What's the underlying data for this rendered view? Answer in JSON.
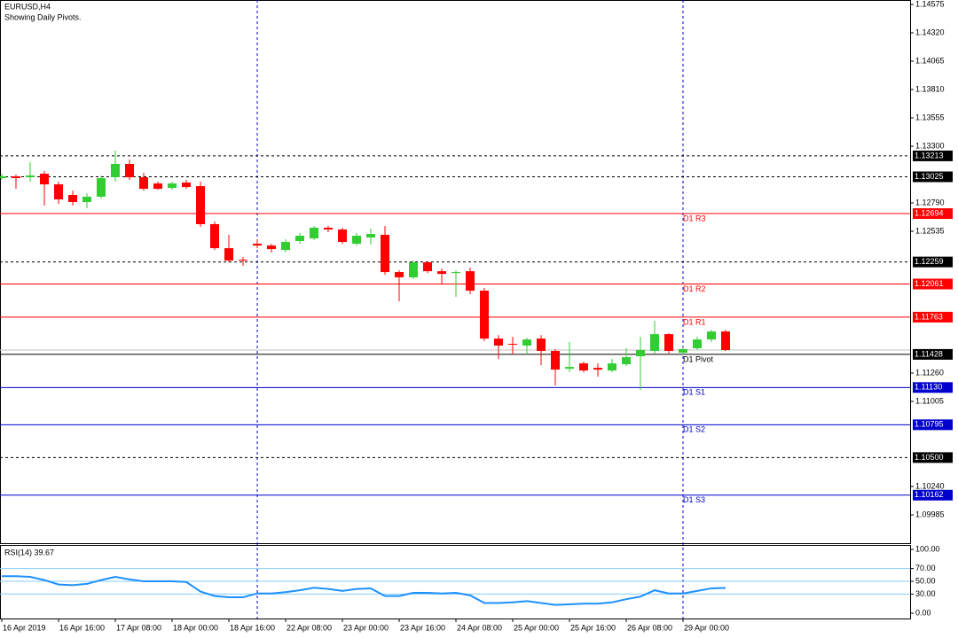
{
  "chart_data": [
    {
      "type": "candlestick",
      "title": "EURUSD,H4",
      "subtitle": "Showing Daily Pivots.",
      "categories": [
        "16 Apr 2019",
        null,
        null,
        null,
        "16 Apr 16:00",
        null,
        null,
        null,
        "17 Apr 08:00",
        null,
        null,
        null,
        "18 Apr 00:00",
        null,
        null,
        null,
        "18 Apr 16:00",
        null,
        null,
        null,
        "22 Apr 08:00",
        null,
        null,
        null,
        "23 Apr 00:00",
        null,
        null,
        null,
        "23 Apr 16:00",
        null,
        null,
        null,
        "24 Apr 08:00",
        null,
        null,
        null,
        "25 Apr 00:00",
        null,
        null,
        null,
        "25 Apr 16:00",
        null,
        null,
        null,
        "26 Apr 08:00",
        null,
        null,
        null,
        "29 Apr 00:00",
        null,
        null,
        null
      ],
      "open": [
        1.13013,
        1.13029,
        1.13021,
        1.13053,
        1.12957,
        1.12862,
        1.12798,
        1.12846,
        1.13021,
        1.13141,
        1.13021,
        1.12965,
        1.12925,
        1.12973,
        1.12941,
        1.12599,
        1.12383,
        1.1228,
        1.12423,
        1.12407,
        1.12367,
        1.12447,
        1.12471,
        1.12567,
        1.12551,
        1.12423,
        1.12479,
        1.12503,
        1.12168,
        1.12121,
        1.12256,
        1.12176,
        1.1216,
        1.12176,
        1.12001,
        1.1157,
        1.11523,
        1.11507,
        1.1157,
        1.11459,
        1.11299,
        1.11347,
        1.11307,
        1.11283,
        1.11339,
        1.11411,
        1.11459,
        1.1161,
        1.11443,
        1.11483,
        1.11562,
        1.11634
      ],
      "high": [
        1.13053,
        1.13045,
        1.13157,
        1.13077,
        1.12981,
        1.12901,
        1.12878,
        1.13037,
        1.1326,
        1.1318,
        1.13061,
        1.12981,
        1.12981,
        1.12997,
        1.12981,
        1.12623,
        1.12503,
        1.12304,
        1.12463,
        1.12423,
        1.12463,
        1.12519,
        1.12583,
        1.12583,
        1.12567,
        1.12519,
        1.12559,
        1.12583,
        1.12184,
        1.12272,
        1.12264,
        1.122,
        1.12184,
        1.12208,
        1.12025,
        1.11602,
        1.11586,
        1.11578,
        1.11602,
        1.11475,
        1.11539,
        1.11363,
        1.11347,
        1.11387,
        1.11483,
        1.11586,
        1.1173,
        1.11618,
        1.11491,
        1.11586,
        1.1165,
        1.1165
      ],
      "low": [
        1.12997,
        1.12917,
        1.12981,
        1.12766,
        1.12782,
        1.12766,
        1.12742,
        1.1283,
        1.12981,
        1.12997,
        1.12901,
        1.12909,
        1.12909,
        1.12917,
        1.12575,
        1.12367,
        1.12256,
        1.12224,
        1.12383,
        1.12344,
        1.12344,
        1.12423,
        1.12455,
        1.12527,
        1.12423,
        1.12407,
        1.12415,
        1.12144,
        1.11905,
        1.12105,
        1.1216,
        1.12065,
        1.11945,
        1.11969,
        1.11547,
        1.11387,
        1.11427,
        1.11427,
        1.11331,
        1.11148,
        1.11267,
        1.11267,
        1.11228,
        1.11267,
        1.11323,
        1.11108,
        1.11435,
        1.11435,
        1.11427,
        1.11467,
        1.11539,
        1.11459
      ],
      "close": [
        1.13029,
        1.13013,
        1.13037,
        1.12957,
        1.12822,
        1.12798,
        1.12846,
        1.13013,
        1.13141,
        1.13021,
        1.12917,
        1.12917,
        1.12965,
        1.12933,
        1.12599,
        1.12383,
        1.12272,
        1.12272,
        1.12407,
        1.12375,
        1.12439,
        1.12495,
        1.12567,
        1.12551,
        1.12439,
        1.12495,
        1.12511,
        1.12168,
        1.12121,
        1.12256,
        1.12176,
        1.12152,
        1.12168,
        1.12001,
        1.1157,
        1.11507,
        1.11515,
        1.11562,
        1.11459,
        1.11291,
        1.11315,
        1.11283,
        1.11291,
        1.11347,
        1.11403,
        1.11467,
        1.1161,
        1.11459,
        1.11475,
        1.11562,
        1.11634,
        1.11467
      ],
      "up_color": "#32cd32",
      "down_color": "#ff0000",
      "ylim": [
        1.0973,
        1.14615
      ],
      "yticks": [
        1.14575,
        {
          "value": 1.1432,
          "label": "1.14320"
        },
        1.14065,
        {
          "value": 1.1381,
          "label": "1.13810"
        },
        1.13555,
        {
          "value": 1.133,
          "label": "1.13300"
        },
        {
          "value": 1.1279,
          "label": "1.12790"
        },
        1.12535,
        {
          "value": 1.1126,
          "label": "1.11260"
        },
        1.11005,
        {
          "value": 1.1024,
          "label": "1.10240"
        },
        1.09985
      ],
      "levels": [
        {
          "value": 1.13213,
          "color": "#000000",
          "style": "dashed"
        },
        {
          "value": 1.13025,
          "color": "#000000",
          "style": "dashed"
        },
        {
          "name": "D1 R3",
          "value": 1.12694,
          "color": "#ff0000",
          "style": "solid"
        },
        {
          "value": 1.12259,
          "color": "#000000",
          "style": "dashed"
        },
        {
          "name": "D1 R2",
          "value": 1.12061,
          "color": "#ff0000",
          "style": "solid"
        },
        {
          "name": "D1 R1",
          "value": 1.11763,
          "color": "#ff0000",
          "style": "solid"
        },
        {
          "name": "D1 Pivot",
          "value": 1.11428,
          "color": "#000000",
          "style": "solid"
        },
        {
          "name": "D1 S1",
          "value": 1.1113,
          "label": "1.11130",
          "color": "#0000cd",
          "style": "solid"
        },
        {
          "name": "D1 S2",
          "value": 1.10795,
          "color": "#0000cd",
          "style": "solid"
        },
        {
          "value": 1.105,
          "label": "1.10500",
          "color": "#000000",
          "style": "dashed"
        },
        {
          "name": "D1 S3",
          "value": 1.10162,
          "color": "#0000cd",
          "style": "solid"
        }
      ],
      "price_line": {
        "value": 1.11467,
        "color": "#c0c0c0"
      }
    },
    {
      "type": "line",
      "title": "RSI(14) 39.67",
      "values": [
        58,
        58,
        57,
        52,
        45,
        44,
        46,
        52,
        57,
        53,
        50,
        50,
        50,
        49,
        34,
        27,
        25,
        25,
        31,
        31,
        33,
        36,
        40,
        38,
        35,
        38,
        39,
        27,
        27,
        32,
        32,
        31,
        32,
        28,
        16,
        16,
        17,
        19,
        16,
        13,
        14,
        15,
        15,
        17,
        22,
        26,
        36,
        31,
        31,
        35,
        39,
        39.67
      ],
      "color": "#1e90ff",
      "level_color": "#87cefa",
      "ylim": [
        -8.3,
        107
      ],
      "yticks": [
        {
          "value": 100,
          "label": "100.00"
        },
        {
          "value": 70,
          "label": "70.00"
        },
        {
          "value": 50,
          "label": "50.00"
        },
        {
          "value": 30,
          "label": "30.00"
        },
        {
          "value": 0,
          "label": "0.00"
        }
      ],
      "levels": [
        70,
        50,
        30
      ]
    }
  ]
}
